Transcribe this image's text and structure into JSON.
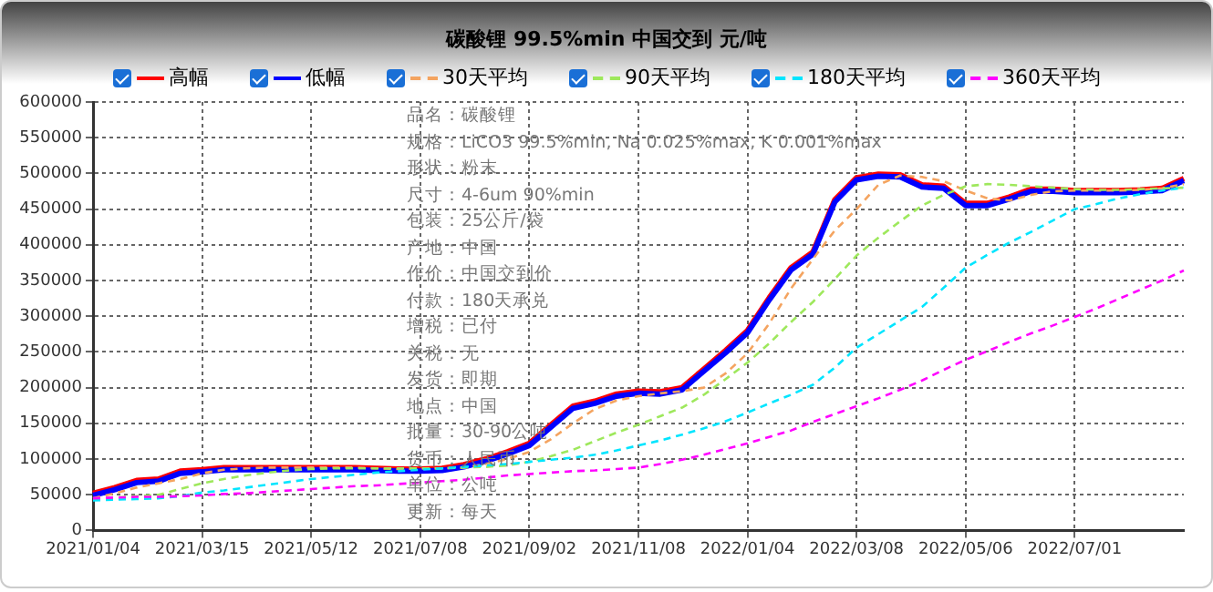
{
  "chart_data": {
    "type": "line",
    "title": "碳酸锂 99.5%min 中国交到 元/吨",
    "categories": [
      "2021/01/04",
      null,
      null,
      null,
      null,
      "2021/03/15",
      null,
      null,
      null,
      null,
      "2021/05/12",
      null,
      null,
      null,
      null,
      "2021/07/08",
      null,
      null,
      null,
      null,
      "2021/09/02",
      null,
      null,
      null,
      null,
      "2021/11/08",
      null,
      null,
      null,
      null,
      "2022/01/04",
      null,
      null,
      null,
      null,
      "2022/03/08",
      null,
      null,
      null,
      null,
      "2022/05/06",
      null,
      null,
      null,
      null,
      "2022/07/01",
      null,
      null,
      null,
      null,
      null
    ],
    "series": [
      {
        "name": "高幅",
        "color": "#ff0000",
        "line_style": "solid",
        "values": [
          52000,
          60000,
          70000,
          72000,
          83000,
          85000,
          88000,
          88000,
          88000,
          88000,
          88000,
          88000,
          88000,
          87000,
          86000,
          86000,
          87000,
          92000,
          100000,
          110000,
          122000,
          148000,
          174000,
          181000,
          191000,
          195000,
          194000,
          200000,
          226000,
          252000,
          280000,
          326000,
          368000,
          390000,
          463000,
          494000,
          499000,
          498000,
          484000,
          482000,
          458000,
          458000,
          467000,
          478000,
          478000,
          476000,
          476000,
          476000,
          477000,
          479000,
          493000
        ]
      },
      {
        "name": "低幅",
        "color": "#0000ff",
        "line_style": "solid",
        "values": [
          49000,
          57000,
          67000,
          69000,
          80000,
          82000,
          85000,
          85000,
          85000,
          85000,
          85000,
          85000,
          85000,
          84000,
          83000,
          83000,
          84000,
          89000,
          97000,
          107000,
          119000,
          145000,
          171000,
          178000,
          188000,
          192000,
          191000,
          197000,
          223000,
          249000,
          277000,
          323000,
          365000,
          387000,
          460000,
          491000,
          496000,
          495000,
          481000,
          479000,
          455000,
          455000,
          464000,
          475000,
          475000,
          473000,
          473000,
          473000,
          474000,
          476000,
          490000
        ]
      },
      {
        "name": "30天平均",
        "color": "#f4a460",
        "line_style": "dashed",
        "values": [
          45000,
          52000,
          60000,
          66000,
          72000,
          80000,
          85000,
          87000,
          88000,
          88000,
          88000,
          88000,
          88000,
          87000,
          86000,
          87000,
          87000,
          88000,
          93000,
          100000,
          110000,
          128000,
          150000,
          170000,
          182000,
          188000,
          192000,
          195000,
          200000,
          220000,
          248000,
          290000,
          339000,
          380000,
          420000,
          450000,
          484000,
          497000,
          495000,
          489000,
          476000,
          465000,
          462000,
          470000,
          475000,
          476000,
          476000,
          476000,
          477000,
          479000,
          485000
        ]
      },
      {
        "name": "90天平均",
        "color": "#9ee85c",
        "line_style": "dashed",
        "values": [
          44000,
          46000,
          48000,
          50000,
          58000,
          66000,
          72000,
          77000,
          81000,
          84000,
          86000,
          87000,
          87000,
          87000,
          87000,
          87000,
          87000,
          88000,
          89000,
          91000,
          96000,
          104000,
          113000,
          125000,
          137000,
          148000,
          160000,
          172000,
          190000,
          212000,
          235000,
          262000,
          292000,
          320000,
          352000,
          385000,
          410000,
          433000,
          455000,
          470000,
          482000,
          485000,
          484000,
          482000,
          480000,
          478000,
          477000,
          477000,
          478000,
          479000,
          480000
        ]
      },
      {
        "name": "180天平均",
        "color": "#00e5ff",
        "line_style": "dashed",
        "values": [
          42000,
          43000,
          44000,
          45000,
          48000,
          53000,
          56000,
          60000,
          64000,
          68000,
          72000,
          75000,
          78000,
          81000,
          83000,
          85000,
          87000,
          89000,
          91000,
          93000,
          96000,
          99000,
          102000,
          106000,
          112000,
          119000,
          126000,
          134000,
          143000,
          153000,
          165000,
          178000,
          190000,
          204000,
          228000,
          256000,
          275000,
          294000,
          313000,
          340000,
          368000,
          386000,
          403000,
          418000,
          434000,
          450000,
          457000,
          465000,
          471000,
          476000,
          480000
        ]
      },
      {
        "name": "360天平均",
        "color": "#ff00ff",
        "line_style": "dashed",
        "values": [
          45000,
          46000,
          47000,
          47000,
          48000,
          49000,
          51000,
          52000,
          54000,
          56000,
          58000,
          60000,
          62000,
          63000,
          65000,
          67000,
          69000,
          71000,
          74000,
          77000,
          79000,
          81000,
          83000,
          84000,
          86000,
          88000,
          93000,
          99000,
          106000,
          114000,
          122000,
          131000,
          140000,
          152000,
          163000,
          174000,
          185000,
          197000,
          210000,
          225000,
          239000,
          251000,
          264000,
          276000,
          287000,
          299000,
          311000,
          324000,
          337000,
          350000,
          364000
        ]
      }
    ],
    "ylim": [
      0,
      600000
    ],
    "yticks": [
      0,
      50000,
      100000,
      150000,
      200000,
      250000,
      300000,
      350000,
      400000,
      450000,
      500000,
      550000,
      600000
    ],
    "grid": true,
    "legend": "top",
    "marker": "none",
    "annotations": [
      "品名：碳酸锂",
      "规格：LiCO3 99.5%min, Na 0.025%max, K 0.001%max",
      "形状：粉末",
      "尺寸：4-6um 90%min",
      "包装：25公斤/袋",
      "产地：中国",
      "作价：中国交到价",
      "付款：180天承兑",
      "增税：已付",
      "关税：无",
      "发货：即期",
      "地点：中国",
      "批量：30-90公吨",
      "货币：人民币",
      "单位：公吨",
      "更新：每天"
    ]
  }
}
